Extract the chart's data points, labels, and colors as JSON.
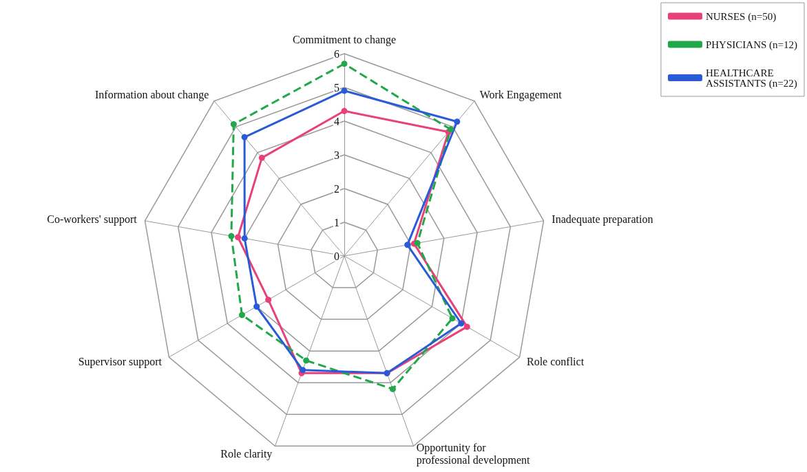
{
  "chart_data": {
    "type": "radar",
    "categories": [
      "Commitment to change",
      "Work Engagement",
      "Inadequate preparation",
      "Role conflict",
      "Opportunity for professional development",
      "Role clarity",
      "Supervisor support",
      "Co-workers' support",
      "Information about change"
    ],
    "series": [
      {
        "name": "NURSES (n=50)",
        "color": "#e8417a",
        "line_style": "solid",
        "values": [
          4.3,
          4.8,
          2.1,
          4.2,
          3.7,
          3.7,
          2.6,
          3.2,
          3.8
        ]
      },
      {
        "name": "PHYSICIANS (n=12)",
        "color": "#22a84a",
        "line_style": "dashed",
        "values": [
          5.7,
          4.9,
          2.2,
          3.7,
          4.2,
          3.3,
          3.5,
          3.4,
          5.1
        ]
      },
      {
        "name": "HEALTHCARE ASSISTANTS (n=22)",
        "color": "#2a5bd7",
        "line_style": "solid",
        "values": [
          4.9,
          5.2,
          1.9,
          4.0,
          3.7,
          3.6,
          3.0,
          3.0,
          4.6
        ]
      }
    ],
    "ylim": [
      0,
      6
    ],
    "yticks": [
      0,
      1,
      2,
      3,
      4,
      5,
      6
    ],
    "grid": true,
    "legend": "top right",
    "marker": "circle"
  }
}
